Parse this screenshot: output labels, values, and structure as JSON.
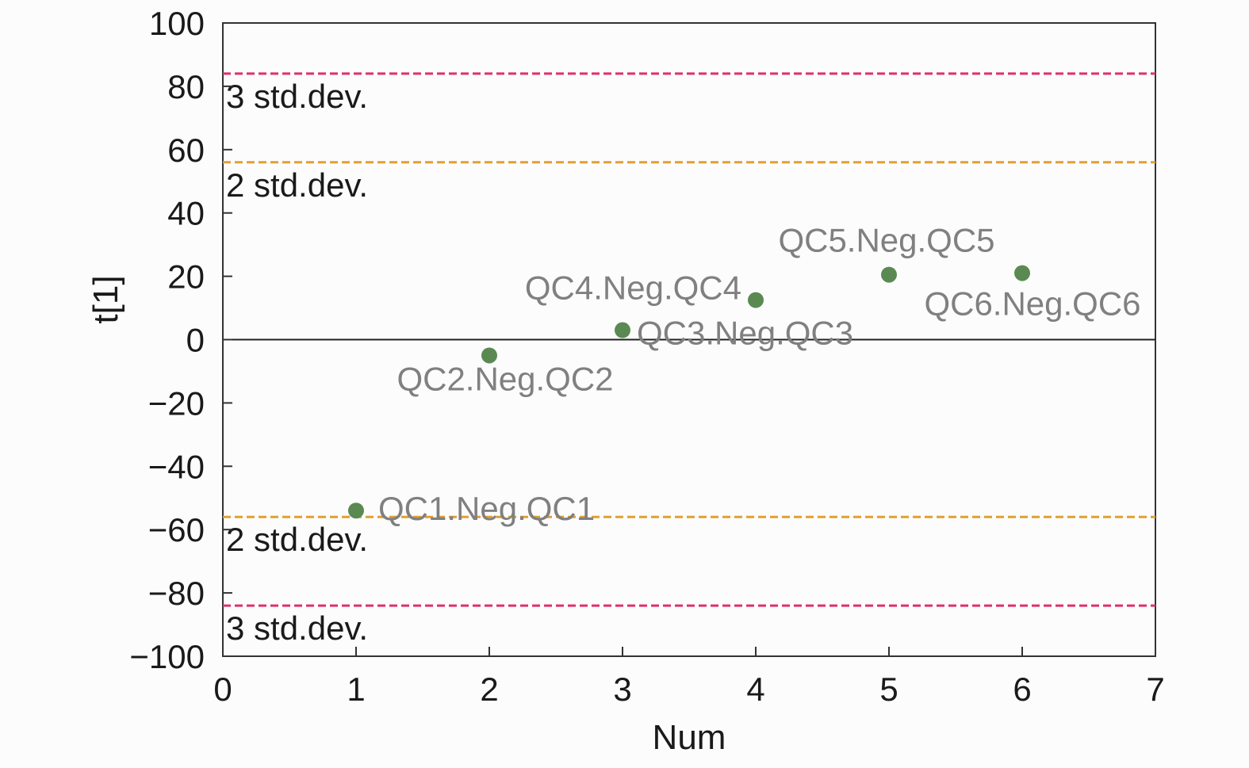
{
  "chart_data": {
    "type": "scatter",
    "xlabel": "Num",
    "ylabel": "t[1]",
    "xlim": [
      0,
      7
    ],
    "ylim": [
      -100,
      100
    ],
    "x_ticks": [
      0,
      1,
      2,
      3,
      4,
      5,
      6,
      7
    ],
    "y_ticks": [
      100,
      80,
      60,
      40,
      20,
      0,
      -20,
      -40,
      -60,
      -80,
      -100
    ],
    "y_tick_labels": [
      "100",
      "80",
      "60",
      "40",
      "20",
      "0",
      "−20",
      "−40",
      "−60",
      "−80",
      "−100"
    ],
    "grid": false,
    "points": [
      {
        "x": 1,
        "y": -54,
        "label": "QC1.Neg.QC1"
      },
      {
        "x": 2,
        "y": -5,
        "label": "QC2.Neg.QC2"
      },
      {
        "x": 3,
        "y": 3,
        "label": "QC3.Neg.QC3"
      },
      {
        "x": 4,
        "y": 12.5,
        "label": "QC4.Neg.QC4"
      },
      {
        "x": 5,
        "y": 20.5,
        "label": "QC5.Neg.QC5"
      },
      {
        "x": 6,
        "y": 21,
        "label": "QC6.Neg.QC6"
      }
    ],
    "reference_lines": [
      {
        "y": 84,
        "label": "3 std.dev.",
        "color": "#e0306a"
      },
      {
        "y": 56,
        "label": "2 std.dev.",
        "color": "#e0a030"
      },
      {
        "y": -56,
        "label": "2 std.dev.",
        "color": "#e0a030"
      },
      {
        "y": -84,
        "label": "3 std.dev.",
        "color": "#e0306a"
      }
    ],
    "zero_line": 0,
    "point_color": "#5a8a52"
  }
}
